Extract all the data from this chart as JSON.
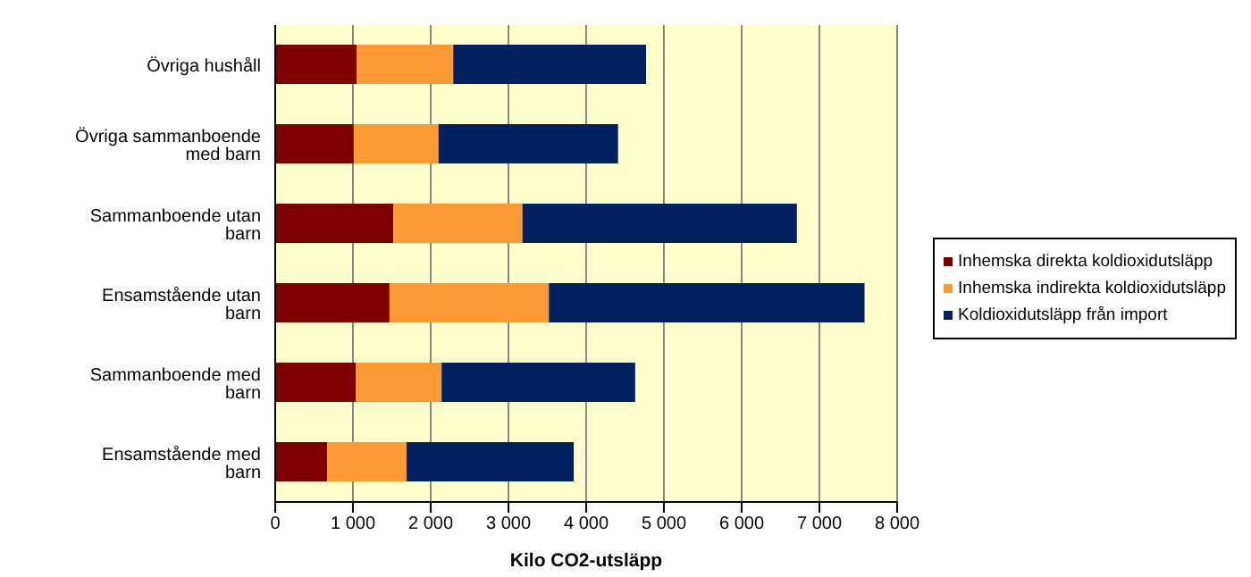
{
  "chart_data": {
    "type": "bar",
    "orientation": "horizontal",
    "stacked": true,
    "xlabel": "Kilo CO2-utsläpp",
    "categories": [
      "Övriga hushåll",
      "Övriga sammanboende med barn",
      "Sammanboende utan barn",
      "Ensamstående utan barn",
      "Sammanboende med barn",
      "Ensamstående med barn"
    ],
    "series": [
      {
        "name": "Inhemska direkta koldioxidutsläpp",
        "color": "#800000",
        "values": [
          1050,
          1010,
          1520,
          1470,
          1040,
          670
        ]
      },
      {
        "name": "Inhemska indirekta koldioxidutsläpp",
        "color": "#ff9933",
        "values": [
          1240,
          1090,
          1660,
          2050,
          1100,
          1020
        ]
      },
      {
        "name": "Koldioxidutsläpp från import",
        "color": "#002060",
        "values": [
          2480,
          2310,
          3530,
          4060,
          2490,
          2150
        ]
      }
    ],
    "xlim": [
      0,
      8000
    ],
    "xticks": [
      0,
      {
        "value": 1000,
        "label": "1 000"
      },
      {
        "value": 2000,
        "label": "2 000"
      },
      {
        "value": 3000,
        "label": "3 000"
      },
      {
        "value": 4000,
        "label": "4 000"
      },
      {
        "value": 5000,
        "label": "5 000"
      },
      {
        "value": 6000,
        "label": "6 000"
      },
      {
        "value": 7000,
        "label": "7 000"
      },
      {
        "value": 8000,
        "label": "8 000"
      }
    ],
    "grid": "x",
    "legend": "right"
  }
}
